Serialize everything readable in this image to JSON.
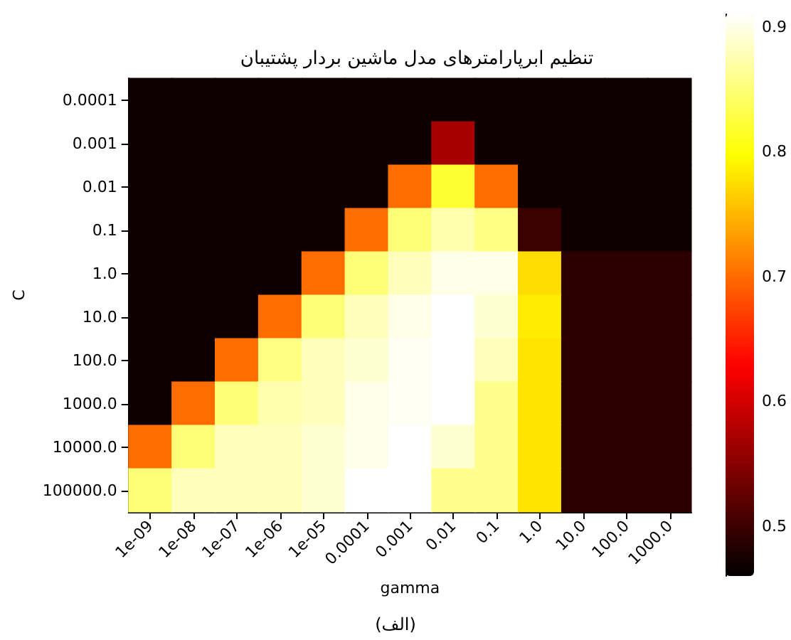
{
  "chart_data": {
    "type": "heatmap",
    "title": "تنظیم ابرپارامترهای مدل ماشین بردار پشتیبان",
    "xlabel": "gamma",
    "ylabel": "C",
    "annotations": [
      "(الف)"
    ],
    "categories": [
      "1e-09",
      "1e-08",
      "1e-07",
      "1e-06",
      "1e-05",
      "0.0001",
      "0.001",
      "0.01",
      "0.1",
      "1.0",
      "10.0",
      "100.0",
      "1000.0"
    ],
    "y_categories": [
      "0.0001",
      "0.001",
      "0.01",
      "0.1",
      "1.0",
      "10.0",
      "100.0",
      "1000.0",
      "10000.0",
      "100000.0"
    ],
    "cells": [
      [
        0.47,
        0.47,
        0.47,
        0.47,
        0.47,
        0.47,
        0.47,
        0.47,
        0.47,
        0.47,
        0.47,
        0.47,
        0.47
      ],
      [
        0.47,
        0.47,
        0.47,
        0.47,
        0.47,
        0.47,
        0.47,
        0.57,
        0.47,
        0.47,
        0.47,
        0.47,
        0.47
      ],
      [
        0.47,
        0.47,
        0.47,
        0.47,
        0.47,
        0.47,
        0.7,
        0.82,
        0.7,
        0.47,
        0.47,
        0.47,
        0.47
      ],
      [
        0.47,
        0.47,
        0.47,
        0.47,
        0.47,
        0.7,
        0.85,
        0.875,
        0.855,
        0.5,
        0.47,
        0.47,
        0.47
      ],
      [
        0.47,
        0.47,
        0.47,
        0.47,
        0.7,
        0.85,
        0.88,
        0.9,
        0.9,
        0.775,
        0.49,
        0.49,
        0.49
      ],
      [
        0.47,
        0.47,
        0.47,
        0.7,
        0.85,
        0.88,
        0.9,
        0.91,
        0.89,
        0.785,
        0.49,
        0.49,
        0.49
      ],
      [
        0.47,
        0.47,
        0.7,
        0.855,
        0.88,
        0.89,
        0.905,
        0.91,
        0.88,
        0.78,
        0.49,
        0.49,
        0.49
      ],
      [
        0.47,
        0.7,
        0.85,
        0.875,
        0.88,
        0.9,
        0.905,
        0.91,
        0.86,
        0.78,
        0.49,
        0.49,
        0.49
      ],
      [
        0.7,
        0.85,
        0.88,
        0.88,
        0.89,
        0.9,
        0.91,
        0.89,
        0.86,
        0.78,
        0.49,
        0.49,
        0.49
      ],
      [
        0.85,
        0.88,
        0.88,
        0.88,
        0.89,
        0.91,
        0.91,
        0.86,
        0.86,
        0.78,
        0.49,
        0.49,
        0.49
      ]
    ],
    "clim": [
      0.46,
      0.91
    ],
    "cticks": [
      0.5,
      0.6,
      0.7,
      0.8,
      0.9
    ]
  }
}
